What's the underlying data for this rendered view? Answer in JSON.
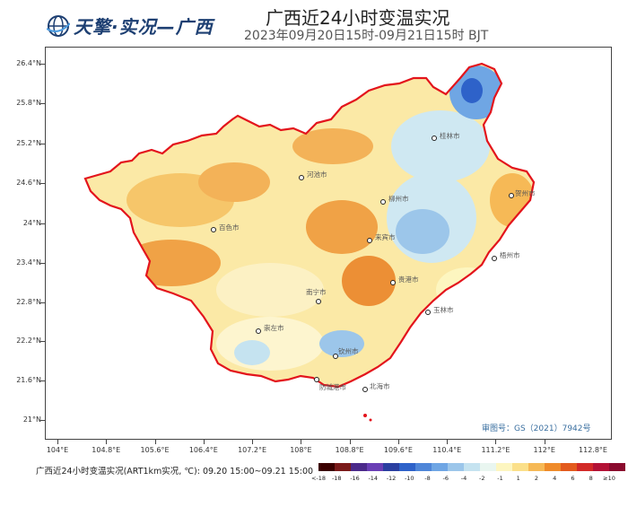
{
  "header": {
    "logo_text": "天擎·实况—广西",
    "title": "广西近24小时变温实况",
    "subtitle": "2023年09月20日15时-09月21日15时 BJT"
  },
  "map": {
    "lat_labels": [
      "26.4°N",
      "25.8°N",
      "25.2°N",
      "24.6°N",
      "24°N",
      "23.4°N",
      "22.8°N",
      "22.2°N",
      "21.6°N",
      "21°N"
    ],
    "lon_labels": [
      "104°E",
      "104.8°E",
      "105.6°E",
      "106.4°E",
      "107.2°E",
      "108°E",
      "108.8°E",
      "109.6°E",
      "110.4°E",
      "111.2°E",
      "112°E",
      "112.8°E"
    ],
    "cities": [
      {
        "name": "桂林市"
      },
      {
        "name": "河池市"
      },
      {
        "name": "柳州市"
      },
      {
        "name": "贺州市"
      },
      {
        "name": "百色市"
      },
      {
        "name": "来宾市"
      },
      {
        "name": "梧州市"
      },
      {
        "name": "贵港市"
      },
      {
        "name": "南宁市"
      },
      {
        "name": "玉林市"
      },
      {
        "name": "崇左市"
      },
      {
        "name": "钦州市"
      },
      {
        "name": "防城港市"
      },
      {
        "name": "北海市"
      }
    ],
    "approval": "审图号：GS（2021）7942号"
  },
  "legend": {
    "label": "广西近24小时变温实况(ART1km实况, ℃): 09.20 15:00~09.21 15:00",
    "colors": [
      "#3b0000",
      "#7a1a1a",
      "#4b2a8a",
      "#6a3fb5",
      "#2b3fa0",
      "#2e62c9",
      "#4f86d8",
      "#6fa6e4",
      "#9cc6ea",
      "#c5e3f0",
      "#e9f6f0",
      "#fdf6c0",
      "#fbe08a",
      "#f6b956",
      "#ef8b2a",
      "#e35b1e",
      "#d22a28",
      "#b31236",
      "#8a0a2e"
    ],
    "ticks": [
      "<-18",
      "-18",
      "-16",
      "-14",
      "-12",
      "-10",
      "-8",
      "-6",
      "-4",
      "-2",
      "-1",
      "1",
      "2",
      "4",
      "6",
      "8",
      "≥10"
    ]
  }
}
